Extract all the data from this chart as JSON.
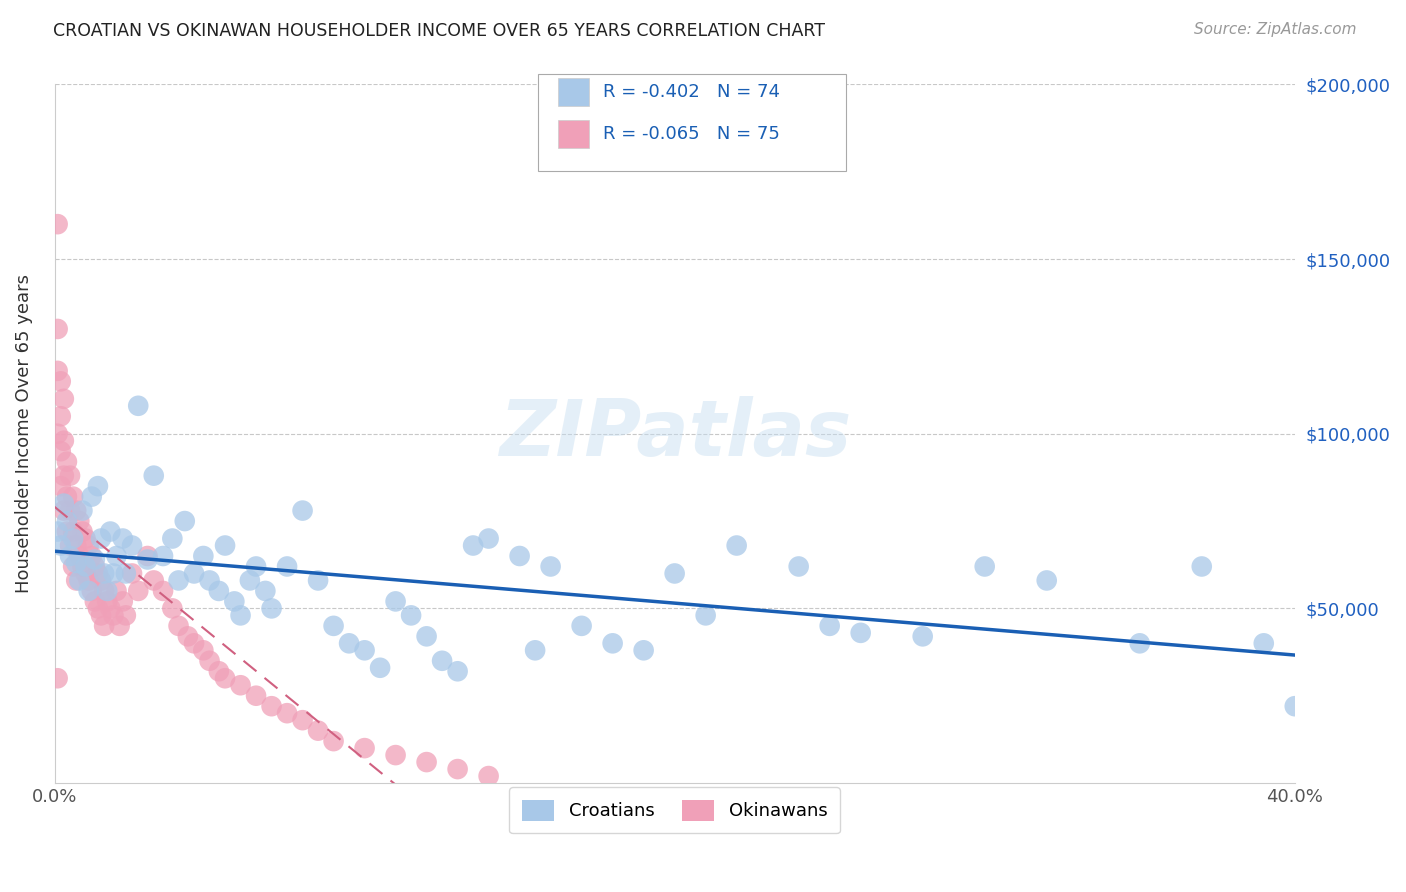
{
  "title": "CROATIAN VS OKINAWAN HOUSEHOLDER INCOME OVER 65 YEARS CORRELATION CHART",
  "source": "Source: ZipAtlas.com",
  "ylabel": "Householder Income Over 65 years",
  "xlim": [
    0.0,
    0.4
  ],
  "ylim": [
    0,
    200000
  ],
  "xticks": [
    0.0,
    0.05,
    0.1,
    0.15,
    0.2,
    0.25,
    0.3,
    0.35,
    0.4
  ],
  "xtick_labels": [
    "0.0%",
    "",
    "",
    "",
    "",
    "",
    "",
    "",
    "40.0%"
  ],
  "yticks": [
    0,
    50000,
    100000,
    150000,
    200000
  ],
  "ytick_labels_right": [
    "",
    "$50,000",
    "$100,000",
    "$150,000",
    "$200,000"
  ],
  "croatian_color": "#a8c8e8",
  "okinawan_color": "#f0a0b8",
  "croatian_line_color": "#1a5fb4",
  "okinawan_line_color": "#d06080",
  "R_croatian": -0.402,
  "N_croatian": 74,
  "R_okinawan": -0.065,
  "N_okinawan": 75,
  "watermark": "ZIPatlas",
  "croatian_x": [
    0.001,
    0.002,
    0.003,
    0.004,
    0.005,
    0.006,
    0.007,
    0.008,
    0.009,
    0.01,
    0.011,
    0.012,
    0.013,
    0.014,
    0.015,
    0.016,
    0.017,
    0.018,
    0.019,
    0.02,
    0.022,
    0.023,
    0.025,
    0.027,
    0.03,
    0.032,
    0.035,
    0.038,
    0.04,
    0.042,
    0.045,
    0.048,
    0.05,
    0.053,
    0.055,
    0.058,
    0.06,
    0.063,
    0.065,
    0.068,
    0.07,
    0.075,
    0.08,
    0.085,
    0.09,
    0.095,
    0.1,
    0.105,
    0.11,
    0.115,
    0.12,
    0.125,
    0.13,
    0.135,
    0.14,
    0.15,
    0.155,
    0.16,
    0.17,
    0.18,
    0.19,
    0.2,
    0.21,
    0.22,
    0.24,
    0.25,
    0.26,
    0.28,
    0.3,
    0.32,
    0.35,
    0.37,
    0.39,
    0.4
  ],
  "croatian_y": [
    72000,
    68000,
    80000,
    75000,
    65000,
    70000,
    63000,
    58000,
    78000,
    62000,
    55000,
    82000,
    64000,
    85000,
    70000,
    60000,
    55000,
    72000,
    60000,
    65000,
    70000,
    60000,
    68000,
    108000,
    64000,
    88000,
    65000,
    70000,
    58000,
    75000,
    60000,
    65000,
    58000,
    55000,
    68000,
    52000,
    48000,
    58000,
    62000,
    55000,
    50000,
    62000,
    78000,
    58000,
    45000,
    40000,
    38000,
    33000,
    52000,
    48000,
    42000,
    35000,
    32000,
    68000,
    70000,
    65000,
    38000,
    62000,
    45000,
    40000,
    38000,
    60000,
    48000,
    68000,
    62000,
    45000,
    43000,
    42000,
    62000,
    58000,
    40000,
    62000,
    40000,
    22000
  ],
  "okinawan_x": [
    0.001,
    0.001,
    0.001,
    0.001,
    0.002,
    0.002,
    0.002,
    0.002,
    0.003,
    0.003,
    0.003,
    0.003,
    0.004,
    0.004,
    0.004,
    0.005,
    0.005,
    0.005,
    0.006,
    0.006,
    0.006,
    0.007,
    0.007,
    0.007,
    0.008,
    0.008,
    0.009,
    0.009,
    0.01,
    0.01,
    0.011,
    0.011,
    0.012,
    0.012,
    0.013,
    0.013,
    0.014,
    0.014,
    0.015,
    0.015,
    0.016,
    0.016,
    0.017,
    0.018,
    0.019,
    0.02,
    0.021,
    0.022,
    0.023,
    0.025,
    0.027,
    0.03,
    0.032,
    0.035,
    0.038,
    0.04,
    0.043,
    0.045,
    0.048,
    0.05,
    0.053,
    0.055,
    0.06,
    0.065,
    0.07,
    0.075,
    0.08,
    0.085,
    0.09,
    0.1,
    0.11,
    0.12,
    0.13,
    0.14,
    0.001
  ],
  "okinawan_y": [
    160000,
    130000,
    118000,
    100000,
    115000,
    105000,
    95000,
    85000,
    110000,
    98000,
    88000,
    78000,
    92000,
    82000,
    72000,
    88000,
    78000,
    68000,
    82000,
    72000,
    62000,
    78000,
    68000,
    58000,
    75000,
    65000,
    72000,
    62000,
    70000,
    60000,
    68000,
    58000,
    65000,
    55000,
    62000,
    52000,
    60000,
    50000,
    58000,
    48000,
    55000,
    45000,
    52000,
    50000,
    48000,
    55000,
    45000,
    52000,
    48000,
    60000,
    55000,
    65000,
    58000,
    55000,
    50000,
    45000,
    42000,
    40000,
    38000,
    35000,
    32000,
    30000,
    28000,
    25000,
    22000,
    20000,
    18000,
    15000,
    12000,
    10000,
    8000,
    6000,
    4000,
    2000,
    30000
  ]
}
